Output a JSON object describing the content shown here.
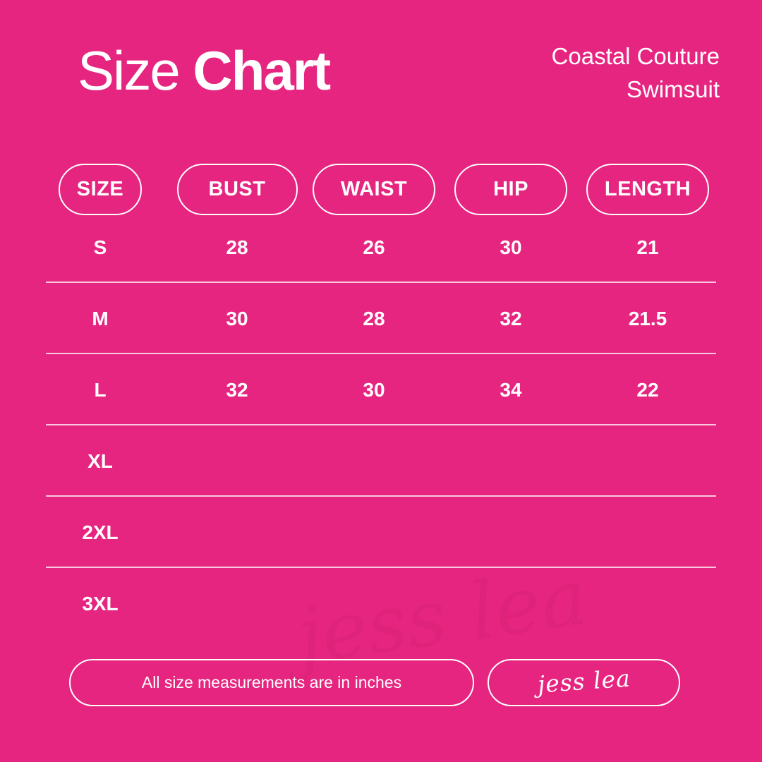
{
  "title": {
    "regular": "Size",
    "bold": "Chart"
  },
  "product": {
    "line1": "Coastal Couture",
    "line2": "Swimsuit"
  },
  "colors": {
    "background": "#E62580",
    "text": "#FFFFFF",
    "divider": "rgba(255,255,255,0.75)"
  },
  "table": {
    "headers": [
      "SIZE",
      "BUST",
      "WAIST",
      "HIP",
      "LENGTH"
    ],
    "rows": [
      {
        "size": "S",
        "bust": "28",
        "waist": "26",
        "hip": "30",
        "length": "21"
      },
      {
        "size": "M",
        "bust": "30",
        "waist": "28",
        "hip": "32",
        "length": "21.5"
      },
      {
        "size": "L",
        "bust": "32",
        "waist": "30",
        "hip": "34",
        "length": "22"
      },
      {
        "size": "XL",
        "bust": "",
        "waist": "",
        "hip": "",
        "length": ""
      },
      {
        "size": "2XL",
        "bust": "",
        "waist": "",
        "hip": "",
        "length": ""
      },
      {
        "size": "3XL",
        "bust": "",
        "waist": "",
        "hip": "",
        "length": ""
      }
    ]
  },
  "footer": {
    "note": "All size measurements are in inches",
    "signature": "jess lea"
  }
}
